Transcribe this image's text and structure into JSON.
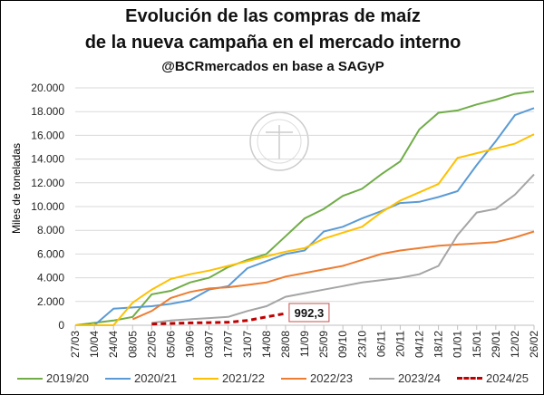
{
  "chart_data": {
    "type": "line",
    "title": "Evolución de las compras de maíz",
    "title_line2": "de la nueva campaña en el mercado interno",
    "subtitle": "@BCRmercados en base a SAGyP",
    "ylabel": "Miles de toneladas",
    "xlabel": "",
    "ylim": [
      0,
      20000
    ],
    "yticks": [
      "0",
      "2.000",
      "4.000",
      "6.000",
      "8.000",
      "10.000",
      "12.000",
      "14.000",
      "16.000",
      "18.000",
      "20.000"
    ],
    "categories": [
      "27/03",
      "10/04",
      "24/04",
      "08/05",
      "22/05",
      "05/06",
      "19/06",
      "03/07",
      "17/07",
      "31/07",
      "14/08",
      "28/08",
      "11/09",
      "25/09",
      "09/10",
      "23/10",
      "06/11",
      "20/11",
      "04/12",
      "18/12",
      "01/01",
      "15/01",
      "29/01",
      "12/02",
      "26/02"
    ],
    "grid": true,
    "legend_position": "bottom",
    "annotation": "992,3",
    "series": [
      {
        "name": "2019/20",
        "color": "#70ad47",
        "dash": false,
        "values": [
          0,
          200,
          400,
          700,
          2600,
          2900,
          3600,
          4000,
          4900,
          5500,
          6000,
          7500,
          9000,
          9800,
          10900,
          11500,
          12700,
          13800,
          16500,
          17900,
          18100,
          18600,
          19000,
          19500,
          19700
        ]
      },
      {
        "name": "2020/21",
        "color": "#5b9bd5",
        "dash": false,
        "values": [
          0,
          0,
          1400,
          1500,
          1600,
          1800,
          2100,
          3000,
          3300,
          4800,
          5400,
          6000,
          6300,
          7900,
          8300,
          9000,
          9600,
          10300,
          10400,
          10800,
          11300,
          13500,
          15500,
          17700,
          18300
        ]
      },
      {
        "name": "2021/22",
        "color": "#ffc000",
        "dash": false,
        "values": [
          0,
          0,
          0,
          1900,
          3000,
          3900,
          4300,
          4600,
          5000,
          5400,
          5800,
          6200,
          6500,
          7300,
          7800,
          8300,
          9500,
          10500,
          11200,
          11900,
          14100,
          14500,
          14900,
          15300,
          16100
        ]
      },
      {
        "name": "2022/23",
        "color": "#ed7d31",
        "dash": false,
        "values": [
          null,
          null,
          null,
          500,
          1200,
          2300,
          2800,
          3100,
          3200,
          3400,
          3600,
          4100,
          4400,
          4700,
          5000,
          5500,
          6000,
          6300,
          6500,
          6700,
          6800,
          6900,
          7000,
          7400,
          7900
        ]
      },
      {
        "name": "2023/24",
        "color": "#a5a5a5",
        "dash": false,
        "values": [
          null,
          null,
          null,
          null,
          200,
          400,
          500,
          600,
          700,
          1200,
          1600,
          2400,
          2700,
          3000,
          3300,
          3600,
          3800,
          4000,
          4300,
          5000,
          7600,
          9500,
          9800,
          11000,
          12700
        ]
      },
      {
        "name": "2024/25",
        "color": "#c00000",
        "dash": true,
        "values": [
          null,
          null,
          null,
          null,
          100,
          150,
          200,
          220,
          250,
          400,
          700,
          992.3,
          null,
          null,
          null,
          null,
          null,
          null,
          null,
          null,
          null,
          null,
          null,
          null,
          null
        ]
      }
    ]
  }
}
